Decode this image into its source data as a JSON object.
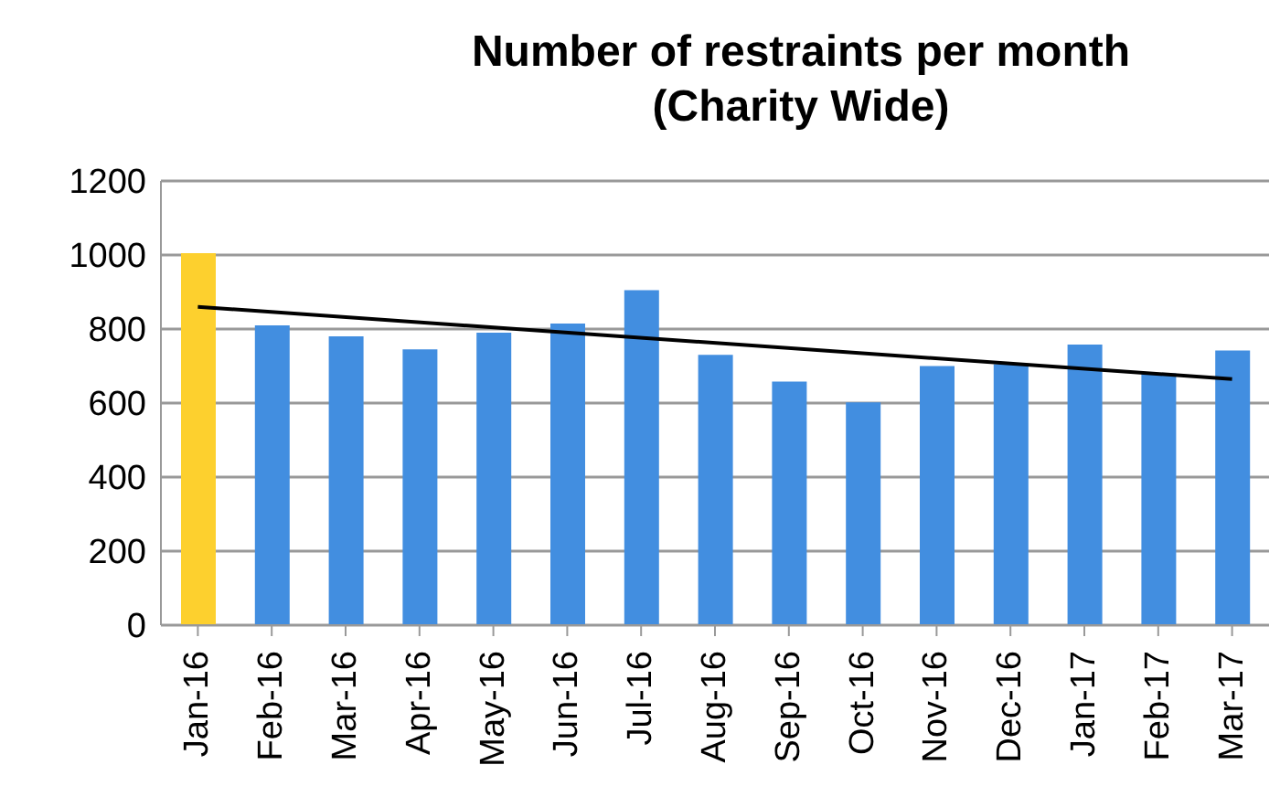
{
  "chart_data": {
    "type": "bar",
    "title": "Number of restraints per month\n(Charity Wide)",
    "categories": [
      "Jan-16",
      "Feb-16",
      "Mar-16",
      "Apr-16",
      "May-16",
      "Jun-16",
      "Jul-16",
      "Aug-16",
      "Sep-16",
      "Oct-16",
      "Nov-16",
      "Dec-16",
      "Jan-17",
      "Feb-17",
      "Mar-17"
    ],
    "series": [
      {
        "colors": [
          "#fdd02e",
          "#428ee0",
          "#428ee0",
          "#428ee0",
          "#428ee0",
          "#428ee0",
          "#428ee0",
          "#428ee0",
          "#428ee0",
          "#428ee0",
          "#428ee0",
          "#428ee0",
          "#428ee0",
          "#428ee0",
          "#428ee0"
        ],
        "values": [
          1005,
          810,
          780,
          745,
          790,
          815,
          905,
          730,
          658,
          602,
          700,
          705,
          758,
          680,
          742
        ]
      },
      {
        "type": "line",
        "color": "#000000",
        "x": [
          "Jan-16",
          "Mar-17"
        ],
        "values": [
          860,
          665
        ]
      }
    ],
    "ylim": [
      0,
      1200
    ],
    "yticks": [
      0,
      200,
      400,
      600,
      800,
      1000,
      1200
    ],
    "grid": "y",
    "legend": false
  }
}
